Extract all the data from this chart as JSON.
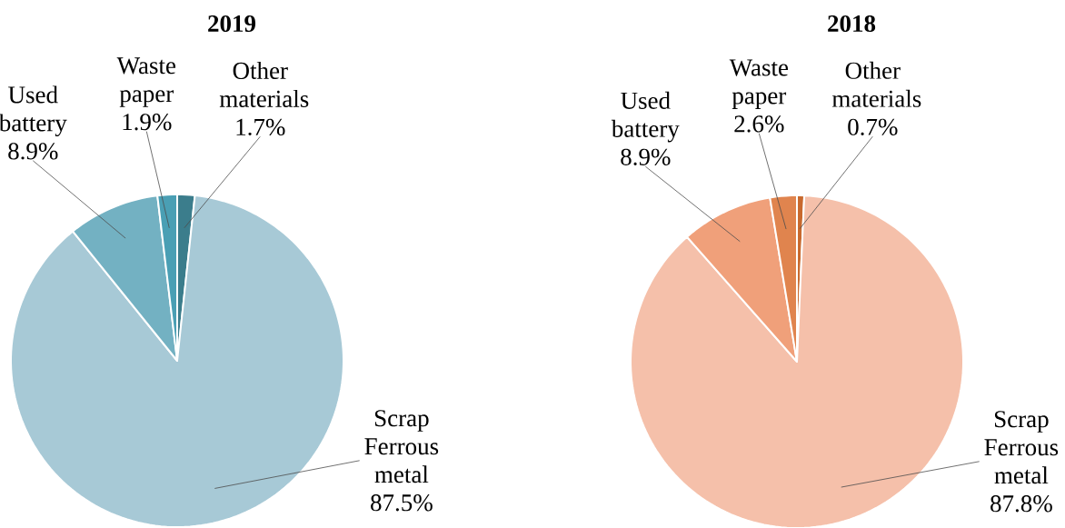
{
  "chart_data": [
    {
      "type": "pie",
      "title": "2019",
      "categories": [
        "Other materials",
        "Scrap Ferrous metal",
        "Used battery",
        "Waste paper"
      ],
      "values": [
        1.7,
        87.5,
        8.9,
        1.9
      ],
      "value_labels": [
        "1.7%",
        "87.5%",
        "8.9%",
        "1.9%"
      ],
      "colors": [
        "#3b7d8c",
        "#a7c9d6",
        "#73b1c2",
        "#4a9fb4"
      ]
    },
    {
      "type": "pie",
      "title": "2018",
      "categories": [
        "Other materials",
        "Scrap Ferrous metal",
        "Used battery",
        "Waste paper"
      ],
      "values": [
        0.7,
        87.8,
        8.9,
        2.6
      ],
      "value_labels": [
        "0.7%",
        "87.8%",
        "8.9%",
        "2.6%"
      ],
      "colors": [
        "#c8692e",
        "#f5c0aa",
        "#f0a07a",
        "#e0844e"
      ]
    }
  ]
}
